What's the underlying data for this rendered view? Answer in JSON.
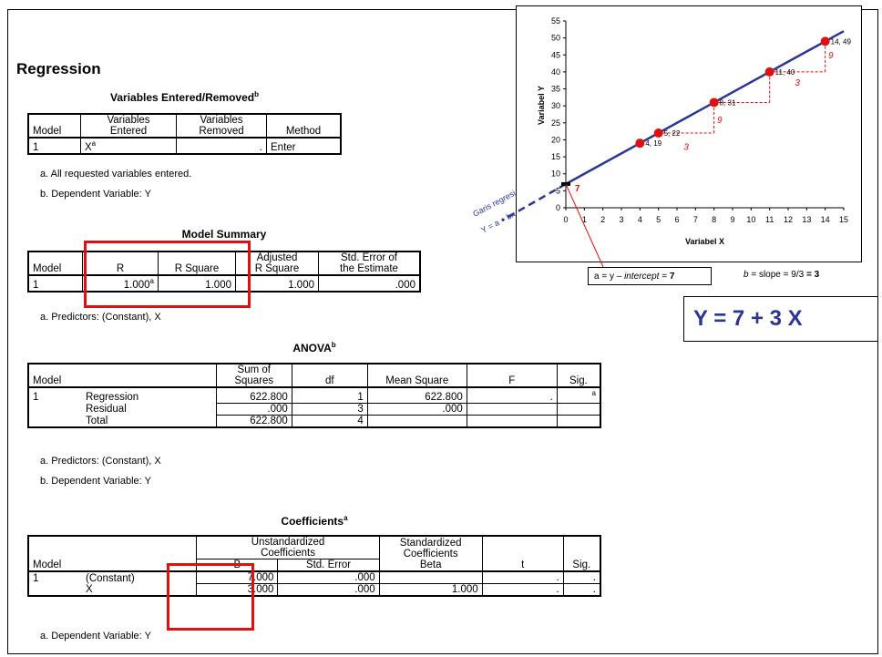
{
  "heading": "Regression",
  "t1": {
    "title": "Variables Entered/Removed",
    "title_sup": "b",
    "h_model": "Model",
    "h_entered": [
      "Variables",
      "Entered"
    ],
    "h_removed": [
      "Variables",
      "Removed"
    ],
    "h_method": "Method",
    "r_model": "1",
    "r_entered": "X",
    "r_entered_sup": "a",
    "r_removed": ".",
    "r_method": "Enter",
    "note_a": "All requested variables entered.",
    "note_b": "Dependent Variable: Y"
  },
  "t2": {
    "title": "Model Summary",
    "h_model": "Model",
    "h_r": "R",
    "h_rsq": "R Square",
    "h_adj": [
      "Adjusted",
      "R Square"
    ],
    "h_se": [
      "Std. Error of",
      "the Estimate"
    ],
    "r_model": "1",
    "r_r": "1.000",
    "r_r_sup": "a",
    "r_rsq": "1.000",
    "r_adj": "1.000",
    "r_se": ".000",
    "note_a": "Predictors: (Constant), X"
  },
  "t3": {
    "title": "ANOVA",
    "title_sup": "b",
    "h_model": "Model",
    "h_ss": [
      "Sum of",
      "Squares"
    ],
    "h_df": "df",
    "h_ms": "Mean Square",
    "h_f": "F",
    "h_sig": "Sig.",
    "rows": [
      {
        "model": "1",
        "name": "Regression",
        "ss": "622.800",
        "df": "1",
        "ms": "622.800",
        "f": ".",
        "sig": "a"
      },
      {
        "model": "",
        "name": "Residual",
        "ss": ".000",
        "df": "3",
        "ms": ".000",
        "f": "",
        "sig": ""
      },
      {
        "model": "",
        "name": "Total",
        "ss": "622.800",
        "df": "4",
        "ms": "",
        "f": "",
        "sig": ""
      }
    ],
    "note_a": "Predictors: (Constant), X",
    "note_b": "Dependent Variable: Y"
  },
  "t4": {
    "title": "Coefficients",
    "title_sup": "a",
    "h_unstd": [
      "Unstandardized",
      "Coefficients"
    ],
    "h_std": [
      "Standardized",
      "Coefficients"
    ],
    "h_model": "Model",
    "h_b": "B",
    "h_se": "Std. Error",
    "h_beta": "Beta",
    "h_t": "t",
    "h_sig": "Sig.",
    "rows": [
      {
        "model": "1",
        "name": "(Constant)",
        "b": "7.000",
        "se": ".000",
        "beta": "",
        "t": ".",
        "sig": "."
      },
      {
        "model": "",
        "name": "X",
        "b": "3.000",
        "se": ".000",
        "beta": "1.000",
        "t": ".",
        "sig": "."
      }
    ],
    "note_a": "Dependent Variable: Y"
  },
  "note_prefix_a": "a.",
  "note_prefix_b": "b.",
  "chart_data": {
    "type": "scatter",
    "xlabel": "Variabel X",
    "ylabel": "Variabel Y",
    "xlim": [
      0,
      15
    ],
    "ylim": [
      0,
      55
    ],
    "xticks": [
      0,
      1,
      2,
      3,
      4,
      5,
      6,
      7,
      8,
      9,
      10,
      11,
      12,
      13,
      14,
      15
    ],
    "yticks": [
      0,
      5,
      10,
      15,
      20,
      25,
      30,
      35,
      40,
      45,
      50,
      55
    ],
    "points": [
      {
        "x": 4,
        "y": 19,
        "label": "4, 19"
      },
      {
        "x": 5,
        "y": 22,
        "label": "5, 22"
      },
      {
        "x": 8,
        "y": 31,
        "label": "8, 31"
      },
      {
        "x": 11,
        "y": 40,
        "label": "11, 40"
      },
      {
        "x": 14,
        "y": 49,
        "label": "14, 49"
      }
    ],
    "line": {
      "intercept": 7,
      "slope": 3
    },
    "step_labels": [
      {
        "text": "3",
        "x": 6.5,
        "y": 17
      },
      {
        "text": "9",
        "x": 8.3,
        "y": 25
      },
      {
        "text": "3",
        "x": 12.5,
        "y": 36
      },
      {
        "text": "9",
        "x": 14.3,
        "y": 44
      }
    ],
    "intercept_label": "7",
    "garis_label": [
      "Garis regresi",
      "Y = a + bx"
    ]
  },
  "callout_a": {
    "pre": "a = y – ",
    "italic": "intercept",
    "post": " = ",
    "bold": "7"
  },
  "callout_b": {
    "italic": "b",
    "pre": " = slope = 9/3 ",
    "bold": "= 3"
  },
  "equation": "Y = 7 + 3 X",
  "colors": {
    "line": "#2b3592",
    "point": "#e01010",
    "highlight": "#e01010",
    "equation": "#2b3592"
  }
}
